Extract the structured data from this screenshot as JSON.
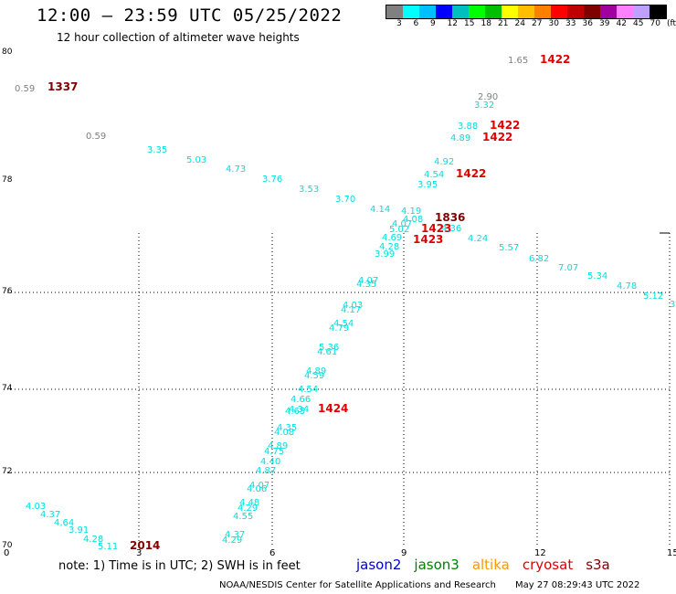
{
  "header": {
    "title": "12:00 — 23:59 UTC 05/25/2022",
    "subtitle": "12 hour collection of altimeter wave heights"
  },
  "legend": {
    "colors": [
      "#808080",
      "#00ffff",
      "#00bfff",
      "#0000ff",
      "#00bfbf",
      "#00ff00",
      "#00bf00",
      "#ffff00",
      "#ffbf00",
      "#ff8000",
      "#ff0000",
      "#bf0000",
      "#800000",
      "#a000a0",
      "#ff80ff",
      "#c0a0ff",
      "#000000"
    ],
    "ticks": [
      "3",
      "6",
      "9",
      "12",
      "15",
      "18",
      "21",
      "24",
      "27",
      "30",
      "33",
      "36",
      "39",
      "42",
      "45",
      "70",
      "(ft)"
    ]
  },
  "map": {
    "lat_labels": [
      "80",
      "78",
      "76",
      "74",
      "72",
      "70"
    ],
    "x_labels": [
      "0",
      "3",
      "6",
      "9",
      "12",
      "15"
    ],
    "observations": [
      {
        "text": "1.65",
        "color": "#808080"
      },
      {
        "text": "1422",
        "color": "#e00000",
        "bold": true
      },
      {
        "text": "0.59",
        "color": "#808080"
      },
      {
        "text": "1337",
        "color": "#800000",
        "bold": true
      },
      {
        "text": "2.90",
        "color": "#808080"
      },
      {
        "text": "3.32",
        "color": "#00e0e0"
      },
      {
        "text": "0.59",
        "color": "#808080"
      },
      {
        "text": "3.88",
        "color": "#00e0e0"
      },
      {
        "text": "1422",
        "color": "#e00000",
        "bold": true
      },
      {
        "text": "4.89",
        "color": "#00e0e0"
      },
      {
        "text": "1422",
        "color": "#e00000",
        "bold": true
      },
      {
        "text": "3.35",
        "color": "#00e0e0"
      },
      {
        "text": "5.03",
        "color": "#00e0e0"
      },
      {
        "text": "4.73",
        "color": "#00e0e0"
      },
      {
        "text": "4.92",
        "color": "#00e0e0"
      },
      {
        "text": "4.54",
        "color": "#00e0e0"
      },
      {
        "text": "1422",
        "color": "#e00000",
        "bold": true
      },
      {
        "text": "3.76",
        "color": "#00e0e0"
      },
      {
        "text": "3.95",
        "color": "#00e0e0"
      },
      {
        "text": "3.53",
        "color": "#00e0e0"
      },
      {
        "text": "3.70",
        "color": "#00e0e0"
      },
      {
        "text": "4.14",
        "color": "#00e0e0"
      },
      {
        "text": "4.19",
        "color": "#00e0e0"
      },
      {
        "text": "4.08",
        "color": "#00e0e0"
      },
      {
        "text": "1836",
        "color": "#800000",
        "bold": true
      },
      {
        "text": "4.07",
        "color": "#00e0e0"
      },
      {
        "text": "5.02",
        "color": "#00e0e0"
      },
      {
        "text": "1423",
        "color": "#e00000",
        "bold": true
      },
      {
        "text": "4.36",
        "color": "#00e0e0"
      },
      {
        "text": "4.69",
        "color": "#00e0e0"
      },
      {
        "text": "1423",
        "color": "#e00000",
        "bold": true
      },
      {
        "text": "4.24",
        "color": "#00e0e0"
      },
      {
        "text": "4.28",
        "color": "#00e0e0"
      },
      {
        "text": "3.99",
        "color": "#00e0e0"
      },
      {
        "text": "5.57",
        "color": "#00e0e0"
      },
      {
        "text": "6.82",
        "color": "#00e0e0"
      },
      {
        "text": "7.07",
        "color": "#00e0e0"
      },
      {
        "text": "5.34",
        "color": "#00e0e0"
      },
      {
        "text": "4.78",
        "color": "#00e0e0"
      },
      {
        "text": "5.12",
        "color": "#00e0e0"
      },
      {
        "text": "3.",
        "color": "#00e0e0"
      },
      {
        "text": "4.07",
        "color": "#00e0e0"
      },
      {
        "text": "4.35",
        "color": "#00e0e0"
      },
      {
        "text": "4.03",
        "color": "#00e0e0"
      },
      {
        "text": "4.17",
        "color": "#00e0e0"
      },
      {
        "text": "4.54",
        "color": "#00e0e0"
      },
      {
        "text": "4.79",
        "color": "#00e0e0"
      },
      {
        "text": "5.36",
        "color": "#00e0e0"
      },
      {
        "text": "4.61",
        "color": "#00e0e0"
      },
      {
        "text": "4.89",
        "color": "#00e0e0"
      },
      {
        "text": "4.59",
        "color": "#00e0e0"
      },
      {
        "text": "4.54",
        "color": "#00e0e0"
      },
      {
        "text": "4.66",
        "color": "#00e0e0"
      },
      {
        "text": "4.34",
        "color": "#00e0e0"
      },
      {
        "text": "1424",
        "color": "#e00000",
        "bold": true
      },
      {
        "text": "4.65",
        "color": "#00e0e0"
      },
      {
        "text": "4.35",
        "color": "#00e0e0"
      },
      {
        "text": "4.08",
        "color": "#00e0e0"
      },
      {
        "text": "4.89",
        "color": "#00e0e0"
      },
      {
        "text": "4.75",
        "color": "#00e0e0"
      },
      {
        "text": "4.40",
        "color": "#00e0e0"
      },
      {
        "text": "4.87",
        "color": "#00e0e0"
      },
      {
        "text": "4.07",
        "color": "#00e0e0"
      },
      {
        "text": "4.06",
        "color": "#00e0e0"
      },
      {
        "text": "4.48",
        "color": "#00e0e0"
      },
      {
        "text": "4.29",
        "color": "#00e0e0"
      },
      {
        "text": "4.55",
        "color": "#00e0e0"
      },
      {
        "text": "4.03",
        "color": "#00e0e0"
      },
      {
        "text": "4.37",
        "color": "#00e0e0"
      },
      {
        "text": "4.64",
        "color": "#00e0e0"
      },
      {
        "text": "3.91",
        "color": "#00e0e0"
      },
      {
        "text": "4.28",
        "color": "#00e0e0"
      },
      {
        "text": "5.11",
        "color": "#00e0e0"
      },
      {
        "text": "2014",
        "color": "#800000",
        "bold": true
      },
      {
        "text": "4.37",
        "color": "#00e0e0"
      },
      {
        "text": "4.29",
        "color": "#00e0e0"
      }
    ]
  },
  "note": "note:  1) Time is in UTC;  2) SWH is in feet",
  "satellites": [
    {
      "name": "jason2",
      "color": "#0000d0"
    },
    {
      "name": "jason3",
      "color": "#008000"
    },
    {
      "name": "altika",
      "color": "#ff9900"
    },
    {
      "name": "cryosat",
      "color": "#e00000"
    },
    {
      "name": "s3a",
      "color": "#800000"
    }
  ],
  "footer": {
    "source": "NOAA/NESDIS Center for Satellite Applications and Research",
    "timestamp": "May 27 08:29:43 UTC 2022"
  }
}
